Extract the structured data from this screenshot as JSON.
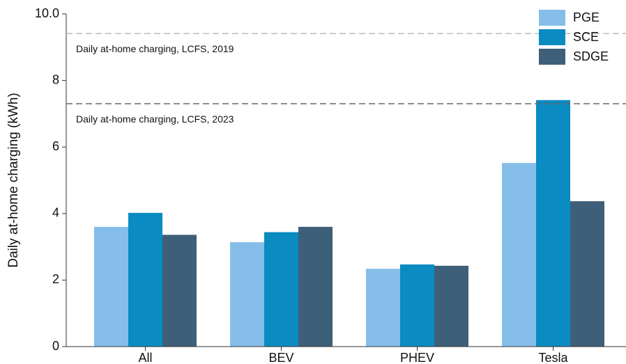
{
  "chart_data": {
    "type": "bar",
    "y_label": "Daily at-home charging (kWh)",
    "categories": [
      "All",
      "BEV",
      "PHEV",
      "Tesla"
    ],
    "series": [
      {
        "name": "PGE",
        "color": "#85bee8",
        "values": [
          3.6,
          3.14,
          2.34,
          5.52
        ]
      },
      {
        "name": "SCE",
        "color": "#0a8bc1",
        "values": [
          4.02,
          3.44,
          2.47,
          7.41
        ]
      },
      {
        "name": "SDGE",
        "color": "#3e5f79",
        "values": [
          3.36,
          3.6,
          2.43,
          4.37
        ]
      }
    ],
    "reference_lines": [
      {
        "label": "Daily at-home charging, LCFS, 2019",
        "value": 9.41,
        "color": "#bbbbbb"
      },
      {
        "label": "Daily at-home charging, LCFS, 2023",
        "value": 7.3,
        "color": "#666666"
      }
    ],
    "ylim": [
      0,
      10
    ],
    "yticks": [
      0,
      2,
      4,
      6,
      8,
      {
        "value": 10,
        "label": "10.0"
      }
    ],
    "legend": "top-right"
  }
}
